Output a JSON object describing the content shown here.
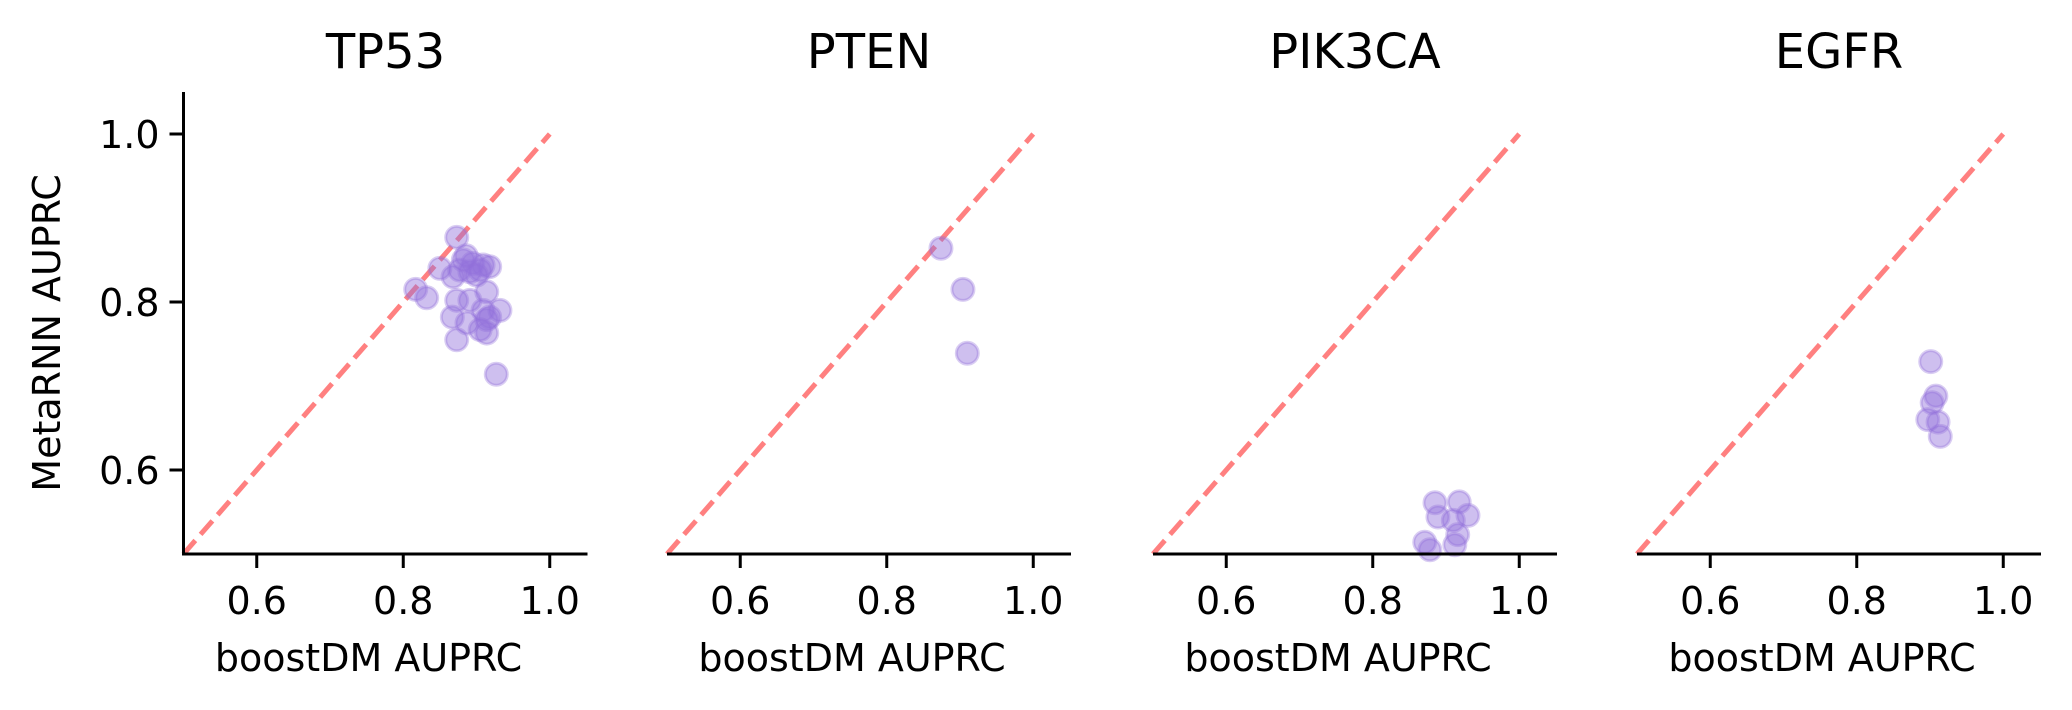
{
  "chart_data": [
    {
      "type": "scatter",
      "title": "TP53",
      "xlabel": "boostDM AUPRC",
      "ylabel": "MetaRNN AUPRC",
      "xlim": [
        0.5,
        1.05
      ],
      "ylim": [
        0.5,
        1.05
      ],
      "xticks": [
        0.6,
        0.8,
        1.0
      ],
      "xtick_labels": [
        "0.6",
        "0.8",
        "1.0"
      ],
      "yticks": [
        0.6,
        0.8,
        1.0
      ],
      "ytick_labels": [
        "0.6",
        "0.8",
        "1.0"
      ],
      "reference_line": {
        "from": [
          0.5,
          0.5
        ],
        "to": [
          1.0,
          1.0
        ],
        "style": "dashed",
        "color": "#ff8080"
      },
      "marker_color": "#9370db",
      "points": [
        {
          "x": 0.873,
          "y": 0.877
        },
        {
          "x": 0.817,
          "y": 0.815
        },
        {
          "x": 0.832,
          "y": 0.805
        },
        {
          "x": 0.85,
          "y": 0.84
        },
        {
          "x": 0.918,
          "y": 0.842
        },
        {
          "x": 0.909,
          "y": 0.844
        },
        {
          "x": 0.882,
          "y": 0.85
        },
        {
          "x": 0.895,
          "y": 0.846
        },
        {
          "x": 0.877,
          "y": 0.838
        },
        {
          "x": 0.891,
          "y": 0.836
        },
        {
          "x": 0.905,
          "y": 0.838
        },
        {
          "x": 0.868,
          "y": 0.83
        },
        {
          "x": 0.914,
          "y": 0.812
        },
        {
          "x": 0.873,
          "y": 0.802
        },
        {
          "x": 0.891,
          "y": 0.802
        },
        {
          "x": 0.867,
          "y": 0.782
        },
        {
          "x": 0.932,
          "y": 0.79
        },
        {
          "x": 0.909,
          "y": 0.79
        },
        {
          "x": 0.887,
          "y": 0.775
        },
        {
          "x": 0.914,
          "y": 0.779
        },
        {
          "x": 0.918,
          "y": 0.782
        },
        {
          "x": 0.873,
          "y": 0.755
        },
        {
          "x": 0.914,
          "y": 0.763
        },
        {
          "x": 0.905,
          "y": 0.767
        },
        {
          "x": 0.927,
          "y": 0.714
        },
        {
          "x": 0.886,
          "y": 0.855
        },
        {
          "x": 0.9,
          "y": 0.832
        }
      ]
    },
    {
      "type": "scatter",
      "title": "PTEN",
      "xlabel": "boostDM AUPRC",
      "ylabel": "",
      "xlim": [
        0.5,
        1.05
      ],
      "ylim": [
        0.5,
        1.05
      ],
      "xticks": [
        0.6,
        0.8,
        1.0
      ],
      "xtick_labels": [
        "0.6",
        "0.8",
        "1.0"
      ],
      "reference_line": {
        "from": [
          0.5,
          0.5
        ],
        "to": [
          1.0,
          1.0
        ],
        "style": "dashed",
        "color": "#ff8080"
      },
      "marker_color": "#9370db",
      "points": [
        {
          "x": 0.874,
          "y": 0.864
        },
        {
          "x": 0.904,
          "y": 0.815
        },
        {
          "x": 0.91,
          "y": 0.739
        }
      ]
    },
    {
      "type": "scatter",
      "title": "PIK3CA",
      "xlabel": "boostDM AUPRC",
      "ylabel": "",
      "xlim": [
        0.5,
        1.05
      ],
      "ylim": [
        0.5,
        1.05
      ],
      "xticks": [
        0.6,
        0.8,
        1.0
      ],
      "xtick_labels": [
        "0.6",
        "0.8",
        "1.0"
      ],
      "reference_line": {
        "from": [
          0.5,
          0.5
        ],
        "to": [
          1.0,
          1.0
        ],
        "style": "dashed",
        "color": "#ff8080"
      },
      "marker_color": "#9370db",
      "points": [
        {
          "x": 0.885,
          "y": 0.561
        },
        {
          "x": 0.918,
          "y": 0.562
        },
        {
          "x": 0.93,
          "y": 0.546
        },
        {
          "x": 0.889,
          "y": 0.544
        },
        {
          "x": 0.91,
          "y": 0.54
        },
        {
          "x": 0.916,
          "y": 0.523
        },
        {
          "x": 0.871,
          "y": 0.514
        },
        {
          "x": 0.912,
          "y": 0.511
        },
        {
          "x": 0.878,
          "y": 0.505
        }
      ]
    },
    {
      "type": "scatter",
      "title": "EGFR",
      "xlabel": "boostDM AUPRC",
      "ylabel": "",
      "xlim": [
        0.5,
        1.05
      ],
      "ylim": [
        0.5,
        1.05
      ],
      "xticks": [
        0.6,
        0.8,
        1.0
      ],
      "xtick_labels": [
        "0.6",
        "0.8",
        "1.0"
      ],
      "reference_line": {
        "from": [
          0.5,
          0.5
        ],
        "to": [
          1.0,
          1.0
        ],
        "style": "dashed",
        "color": "#ff8080"
      },
      "marker_color": "#9370db",
      "points": [
        {
          "x": 0.901,
          "y": 0.729
        },
        {
          "x": 0.908,
          "y": 0.688
        },
        {
          "x": 0.903,
          "y": 0.68
        },
        {
          "x": 0.897,
          "y": 0.66
        },
        {
          "x": 0.911,
          "y": 0.657
        },
        {
          "x": 0.914,
          "y": 0.64
        }
      ]
    }
  ]
}
